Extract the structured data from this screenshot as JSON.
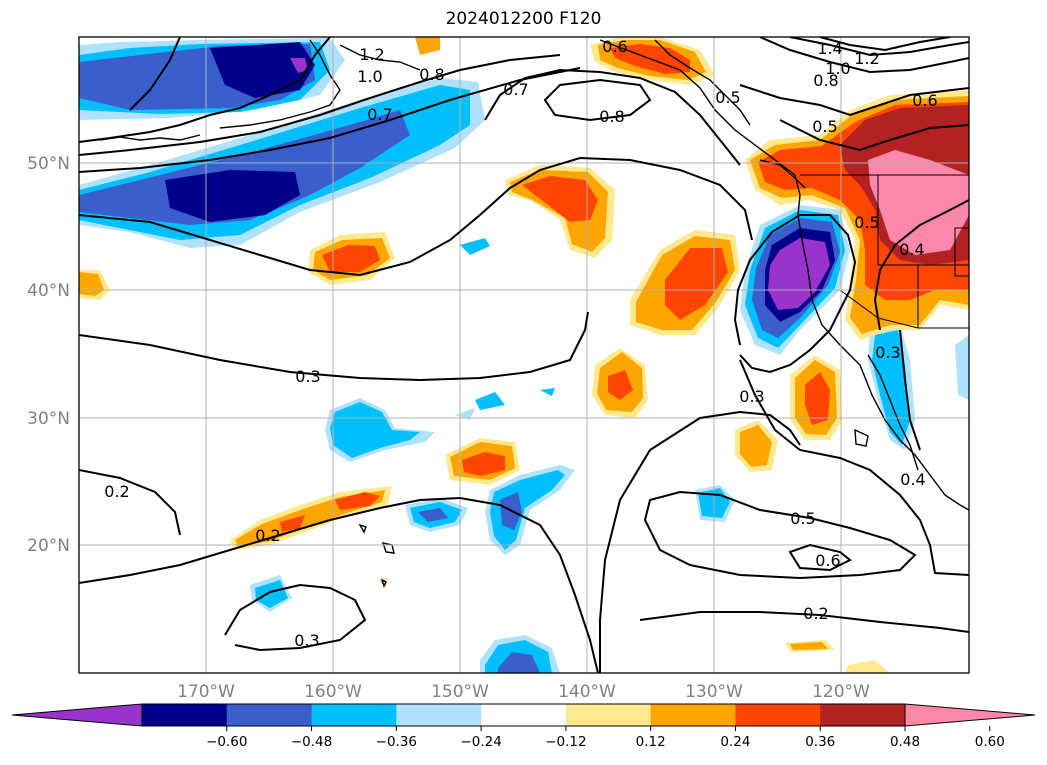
{
  "title": "2024012200 F120",
  "map": {
    "lat_ticks": [
      "50°N",
      "40°N",
      "30°N",
      "20°N"
    ],
    "lon_ticks": [
      "170°W",
      "160°W",
      "150°W",
      "140°W",
      "130°W",
      "120°W"
    ],
    "grid": true
  },
  "contour_labels": [
    "1.2",
    "1.0",
    "0.8",
    "0.7",
    "0.6",
    "0.7",
    "0.8",
    "0.5",
    "1.4",
    "1.2",
    "1.0",
    "0.8",
    "0.6",
    "0.5",
    "0.5",
    "0.4",
    "0.3",
    "0.3",
    "0.3",
    "0.2",
    "0.2",
    "0.3",
    "0.5",
    "0.6",
    "0.2",
    "0.4"
  ],
  "colorbar": {
    "ticks": [
      "−0.60",
      "−0.48",
      "−0.36",
      "−0.24",
      "−0.12",
      "0.12",
      "0.24",
      "0.36",
      "0.48",
      "0.60"
    ],
    "colors": [
      "#9933cc",
      "#00008b",
      "#3a5fcd",
      "#00bfff",
      "#b0e2ff",
      "#ffffff",
      "#ffe98f",
      "#ffa500",
      "#ff4500",
      "#b22222",
      "#ff88aa"
    ]
  }
}
